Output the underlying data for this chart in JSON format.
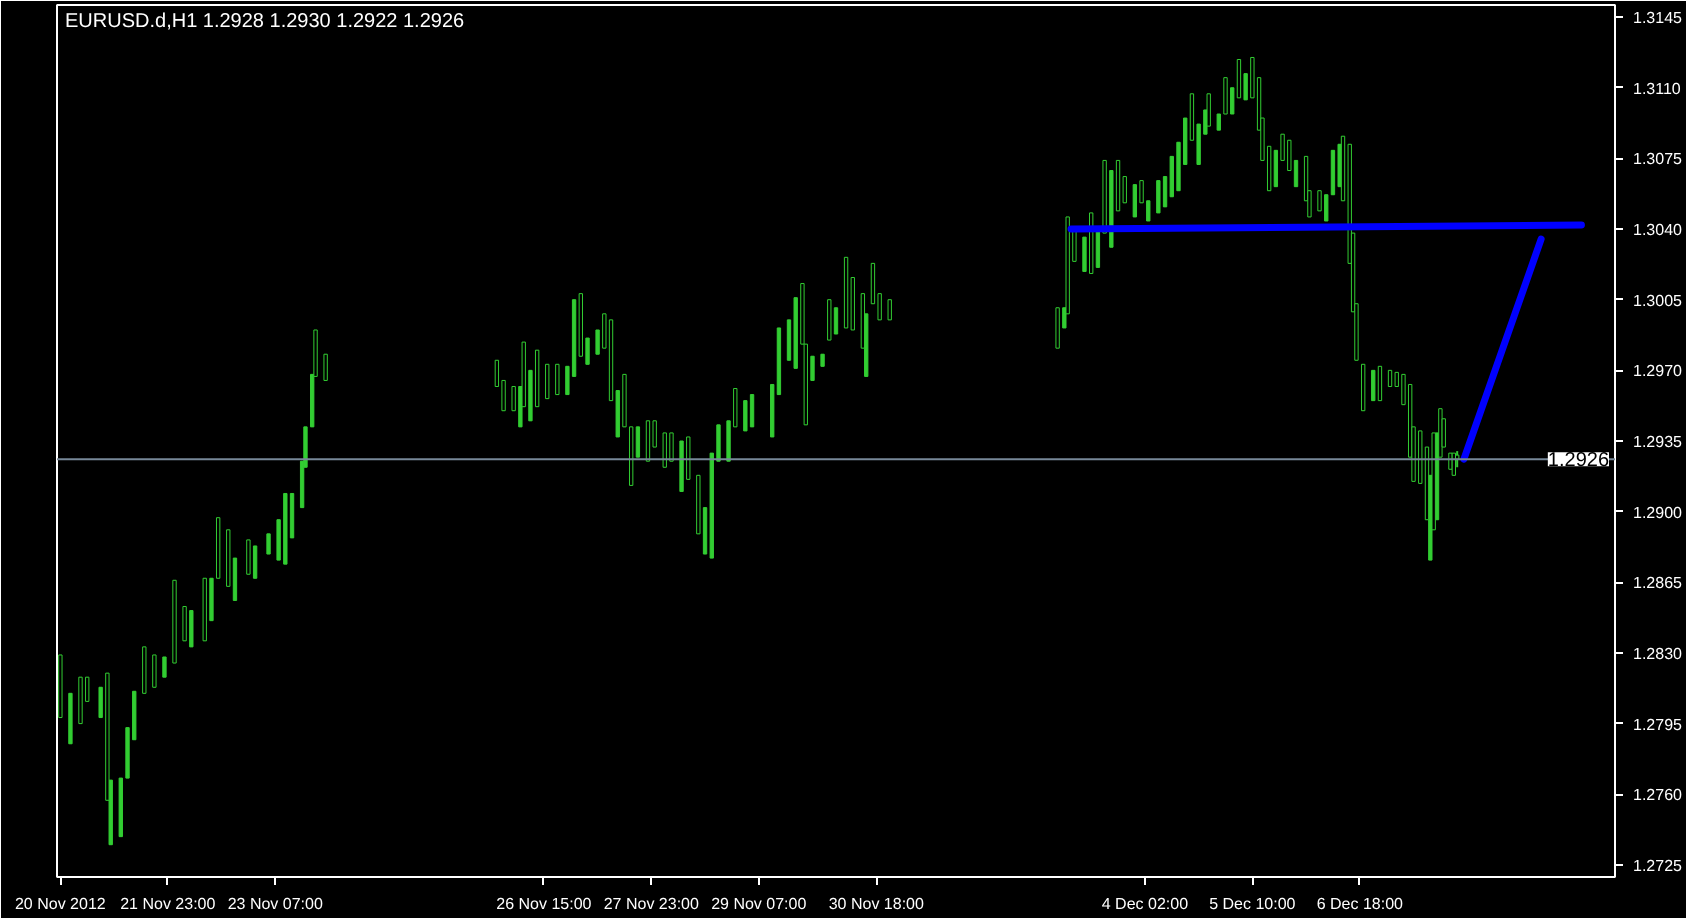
{
  "chart_data": {
    "type": "candlestick",
    "title": "EURUSD.d,H1  1.2928 1.2930 1.2922 1.2926",
    "color": "#32cd32",
    "x": [
      "2012-11-20T15:00",
      "2012-11-20T18:00",
      "2012-11-20T21:00",
      "2012-11-20T23:00",
      "2012-11-21T03:00",
      "2012-11-21T05:00",
      "2012-11-21T06:00",
      "2012-11-21T09:00",
      "2012-11-21T11:00",
      "2012-11-21T13:00",
      "2012-11-21T16:00",
      "2012-11-21T19:00",
      "2012-11-21T22:00",
      "2012-11-22T01:00",
      "2012-11-22T04:00",
      "2012-11-22T06:00",
      "2012-11-22T10:00",
      "2012-11-22T12:00",
      "2012-11-22T14:00",
      "2012-11-22T17:00",
      "2012-11-22T19:00",
      "2012-11-22T23:00",
      "2012-11-23T01:00",
      "2012-11-23T05:00",
      "2012-11-23T08:00",
      "2012-11-23T10:00",
      "2012-11-23T12:00",
      "2012-11-23T15:00",
      "2012-11-23T16:00",
      "2012-11-23T18:00",
      "2012-11-23T19:00",
      "2012-11-23T22:00",
      "2012-11-26T01:00",
      "2012-11-26T03:00",
      "2012-11-26T06:00",
      "2012-11-26T08:00",
      "2012-11-26T09:00",
      "2012-11-26T11:00",
      "2012-11-26T13:00",
      "2012-11-26T16:00",
      "2012-11-26T19:00",
      "2012-11-26T22:00",
      "2012-11-27T00:00",
      "2012-11-27T02:00",
      "2012-11-27T04:00",
      "2012-11-27T07:00",
      "2012-11-27T09:00",
      "2012-11-27T11:00",
      "2012-11-27T13:00",
      "2012-11-27T15:00",
      "2012-11-27T17:00",
      "2012-11-27T19:00",
      "2012-11-27T22:00",
      "2012-11-28T00:00",
      "2012-11-28T03:00",
      "2012-11-28T05:00",
      "2012-11-28T08:00",
      "2012-11-28T10:00",
      "2012-11-28T13:00",
      "2012-11-28T15:00",
      "2012-11-28T17:00",
      "2012-11-28T19:00",
      "2012-11-28T22:00",
      "2012-11-29T00:00",
      "2012-11-29T03:00",
      "2012-11-29T05:00",
      "2012-11-29T11:00",
      "2012-11-29T13:00",
      "2012-11-29T16:00",
      "2012-11-29T18:00",
      "2012-11-29T20:00",
      "2012-11-29T21:00",
      "2012-11-29T23:00",
      "2012-11-30T02:00",
      "2012-11-30T04:00",
      "2012-11-30T06:00",
      "2012-11-30T09:00",
      "2012-11-30T11:00",
      "2012-11-30T14:00",
      "2012-11-30T15:00",
      "2012-11-30T17:00",
      "2012-11-30T19:00",
      "2012-11-30T22:00",
      "2012-12-03T00:00",
      "2012-12-03T02:00",
      "2012-12-03T03:00",
      "2012-12-03T05:00",
      "2012-12-03T08:00",
      "2012-12-03T10:00",
      "2012-12-03T12:00",
      "2012-12-03T14:00",
      "2012-12-03T16:00",
      "2012-12-03T18:00",
      "2012-12-03T20:00",
      "2012-12-03T23:00",
      "2012-12-04T01:00",
      "2012-12-04T03:00",
      "2012-12-04T06:00",
      "2012-12-04T08:00",
      "2012-12-04T10:00",
      "2012-12-04T12:00",
      "2012-12-04T14:00",
      "2012-12-04T16:00",
      "2012-12-04T18:00",
      "2012-12-04T20:00",
      "2012-12-04T21:00",
      "2012-12-05T00:00",
      "2012-12-05T02:00",
      "2012-12-05T04:00",
      "2012-12-05T06:00",
      "2012-12-05T08:00",
      "2012-12-05T10:00",
      "2012-12-05T12:00",
      "2012-12-05T13:00",
      "2012-12-05T15:00",
      "2012-12-05T17:00",
      "2012-12-05T19:00",
      "2012-12-05T21:00",
      "2012-12-05T23:00",
      "2012-12-06T02:00",
      "2012-12-06T03:00",
      "2012-12-06T06:00",
      "2012-12-06T08:00",
      "2012-12-06T10:00",
      "2012-12-06T12:00",
      "2012-12-06T13:00",
      "2012-12-06T15:00",
      "2012-12-06T16:00",
      "2012-12-06T17:00",
      "2012-12-06T19:00",
      "2012-12-06T22:00",
      "2012-12-07T00:00",
      "2012-12-07T03:00",
      "2012-12-07T05:00",
      "2012-12-07T07:00",
      "2012-12-07T09:00",
      "2012-12-07T10:00",
      "2012-12-07T12:00",
      "2012-12-07T14:00",
      "2012-12-07T15:00",
      "2012-12-07T16:00",
      "2012-12-07T17:00",
      "2012-12-07T18:00",
      "2012-12-07T19:00",
      "2012-12-07T21:00",
      "2012-12-07T22:00",
      "2012-12-07T23:00"
    ],
    "ohlc": [
      [
        1.2829,
        1.2829,
        1.2798,
        1.2798
      ],
      [
        1.2785,
        1.281,
        1.2785,
        1.281
      ],
      [
        1.2818,
        1.2818,
        1.2795,
        1.2795
      ],
      [
        1.2818,
        1.2818,
        1.2806,
        1.2806
      ],
      [
        1.2798,
        1.2813,
        1.2798,
        1.2813
      ],
      [
        1.282,
        1.282,
        1.2757,
        1.2757
      ],
      [
        1.2735,
        1.2767,
        1.2735,
        1.2767
      ],
      [
        1.2739,
        1.2768,
        1.2739,
        1.2768
      ],
      [
        1.2768,
        1.2793,
        1.2768,
        1.2793
      ],
      [
        1.2787,
        1.2811,
        1.2787,
        1.2811
      ],
      [
        1.2833,
        1.2833,
        1.281,
        1.281
      ],
      [
        1.2829,
        1.2829,
        1.2813,
        1.2813
      ],
      [
        1.2818,
        1.2828,
        1.2818,
        1.2828
      ],
      [
        1.2866,
        1.2866,
        1.2825,
        1.2825
      ],
      [
        1.2853,
        1.2853,
        1.2836,
        1.2836
      ],
      [
        1.2833,
        1.2851,
        1.2833,
        1.2851
      ],
      [
        1.2867,
        1.2867,
        1.2836,
        1.2836
      ],
      [
        1.2846,
        1.2867,
        1.2846,
        1.2867
      ],
      [
        1.2897,
        1.2897,
        1.2867,
        1.2867
      ],
      [
        1.2891,
        1.2891,
        1.2863,
        1.2863
      ],
      [
        1.2856,
        1.2877,
        1.2856,
        1.2877
      ],
      [
        1.2886,
        1.2886,
        1.2869,
        1.2869
      ],
      [
        1.2867,
        1.2883,
        1.2867,
        1.2883
      ],
      [
        1.2879,
        1.2889,
        1.2879,
        1.2889
      ],
      [
        1.2876,
        1.2896,
        1.2876,
        1.2896
      ],
      [
        1.2874,
        1.2909,
        1.2874,
        1.2909
      ],
      [
        1.2887,
        1.2909,
        1.2887,
        1.2909
      ],
      [
        1.2902,
        1.2925,
        1.2902,
        1.2925
      ],
      [
        1.2922,
        1.2942,
        1.2922,
        1.2942
      ],
      [
        1.2942,
        1.2968,
        1.2942,
        1.2968
      ],
      [
        1.299,
        1.299,
        1.2967,
        1.2967
      ],
      [
        1.2978,
        1.2978,
        1.2965,
        1.2965
      ],
      [
        1.2975,
        1.2975,
        1.2962,
        1.2962
      ],
      [
        1.2965,
        1.2965,
        1.295,
        1.295
      ],
      [
        1.2962,
        1.2962,
        1.295,
        1.295
      ],
      [
        1.2942,
        1.2962,
        1.2942,
        1.2962
      ],
      [
        1.2984,
        1.2984,
        1.2952,
        1.2952
      ],
      [
        1.2945,
        1.297,
        1.2945,
        1.297
      ],
      [
        1.298,
        1.298,
        1.2952,
        1.2952
      ],
      [
        1.2973,
        1.2973,
        1.2956,
        1.2956
      ],
      [
        1.2973,
        1.2973,
        1.2958,
        1.2958
      ],
      [
        1.2958,
        1.2972,
        1.2958,
        1.2972
      ],
      [
        1.2967,
        1.3005,
        1.2967,
        1.3005
      ],
      [
        1.3008,
        1.3008,
        1.2977,
        1.2977
      ],
      [
        1.2973,
        1.2986,
        1.2973,
        1.2986
      ],
      [
        1.2978,
        1.299,
        1.2978,
        1.299
      ],
      [
        1.2998,
        1.2998,
        1.2981,
        1.2981
      ],
      [
        1.2995,
        1.2995,
        1.2955,
        1.2955
      ],
      [
        1.2937,
        1.296,
        1.2937,
        1.296
      ],
      [
        1.2968,
        1.2968,
        1.2942,
        1.2942
      ],
      [
        1.2942,
        1.2942,
        1.2913,
        1.2913
      ],
      [
        1.2927,
        1.2942,
        1.2927,
        1.2942
      ],
      [
        1.2945,
        1.2945,
        1.2925,
        1.2925
      ],
      [
        1.2945,
        1.2945,
        1.2932,
        1.2932
      ],
      [
        1.2939,
        1.2939,
        1.2922,
        1.2922
      ],
      [
        1.2939,
        1.2939,
        1.2925,
        1.2925
      ],
      [
        1.291,
        1.2935,
        1.291,
        1.2935
      ],
      [
        1.2937,
        1.2937,
        1.2916,
        1.2916
      ],
      [
        1.2918,
        1.2918,
        1.2889,
        1.2889
      ],
      [
        1.2879,
        1.2902,
        1.2879,
        1.2902
      ],
      [
        1.2877,
        1.2929,
        1.2877,
        1.2929
      ],
      [
        1.2925,
        1.2943,
        1.2925,
        1.2943
      ],
      [
        1.2925,
        1.2945,
        1.2925,
        1.2945
      ],
      [
        1.2961,
        1.2961,
        1.2942,
        1.2942
      ],
      [
        1.294,
        1.2955,
        1.294,
        1.2955
      ],
      [
        1.2942,
        1.2958,
        1.2942,
        1.2958
      ],
      [
        1.2937,
        1.2963,
        1.2937,
        1.2963
      ],
      [
        1.2958,
        1.2991,
        1.2958,
        1.2991
      ],
      [
        1.2975,
        1.2995,
        1.2975,
        1.2995
      ],
      [
        1.2971,
        1.3006,
        1.2971,
        1.3006
      ],
      [
        1.3013,
        1.3013,
        1.2983,
        1.2983
      ],
      [
        1.2983,
        1.2983,
        1.2943,
        1.2943
      ],
      [
        1.2965,
        1.2977,
        1.2965,
        1.2977
      ],
      [
        1.2972,
        1.2978,
        1.2972,
        1.2978
      ],
      [
        1.3005,
        1.3005,
        1.2985,
        1.2985
      ],
      [
        1.2988,
        1.3001,
        1.2988,
        1.3001
      ],
      [
        1.3026,
        1.3026,
        1.2991,
        1.2991
      ],
      [
        1.3016,
        1.3016,
        1.299,
        1.299
      ],
      [
        1.3008,
        1.3008,
        1.2981,
        1.2981
      ],
      [
        1.2967,
        1.2998,
        1.2967,
        1.2998
      ],
      [
        1.3023,
        1.3023,
        1.3003,
        1.3003
      ],
      [
        1.3008,
        1.3008,
        1.2995,
        1.2995
      ],
      [
        1.3005,
        1.3005,
        1.2995,
        1.2995
      ],
      [
        1.3001,
        1.3001,
        1.2981,
        1.2981
      ],
      [
        1.2991,
        1.3001,
        1.2991,
        1.3001
      ],
      [
        1.3046,
        1.3046,
        1.2998,
        1.2998
      ],
      [
        1.3039,
        1.3039,
        1.3024,
        1.3024
      ],
      [
        1.3019,
        1.3036,
        1.3019,
        1.3036
      ],
      [
        1.3048,
        1.3048,
        1.3018,
        1.3018
      ],
      [
        1.3021,
        1.3039,
        1.3021,
        1.3039
      ],
      [
        1.3074,
        1.3074,
        1.3038,
        1.3038
      ],
      [
        1.3031,
        1.3069,
        1.3031,
        1.3069
      ],
      [
        1.3074,
        1.3074,
        1.3049,
        1.3049
      ],
      [
        1.3066,
        1.3066,
        1.3053,
        1.3053
      ],
      [
        1.3046,
        1.3062,
        1.3046,
        1.3062
      ],
      [
        1.3064,
        1.3064,
        1.3053,
        1.3053
      ],
      [
        1.3044,
        1.3054,
        1.3044,
        1.3054
      ],
      [
        1.3048,
        1.3064,
        1.3048,
        1.3064
      ],
      [
        1.3051,
        1.3066,
        1.3051,
        1.3066
      ],
      [
        1.3056,
        1.3076,
        1.3056,
        1.3076
      ],
      [
        1.3059,
        1.3083,
        1.3059,
        1.3083
      ],
      [
        1.3072,
        1.3095,
        1.3072,
        1.3095
      ],
      [
        1.3107,
        1.3107,
        1.3084,
        1.3084
      ],
      [
        1.3072,
        1.3092,
        1.3072,
        1.3092
      ],
      [
        1.3087,
        1.3099,
        1.3087,
        1.3099
      ],
      [
        1.3107,
        1.3107,
        1.3091,
        1.3091
      ],
      [
        1.3089,
        1.3097,
        1.3089,
        1.3097
      ],
      [
        1.3115,
        1.3115,
        1.3097,
        1.3097
      ],
      [
        1.3097,
        1.311,
        1.3097,
        1.311
      ],
      [
        1.3124,
        1.3124,
        1.3105,
        1.3105
      ],
      [
        1.3104,
        1.3117,
        1.3104,
        1.3117
      ],
      [
        1.3125,
        1.3125,
        1.3105,
        1.3105
      ],
      [
        1.3115,
        1.3115,
        1.3089,
        1.3089
      ],
      [
        1.3095,
        1.3095,
        1.3074,
        1.3074
      ],
      [
        1.3081,
        1.3081,
        1.3059,
        1.3059
      ],
      [
        1.3061,
        1.3079,
        1.3061,
        1.3079
      ],
      [
        1.3087,
        1.3087,
        1.3074,
        1.3074
      ],
      [
        1.3084,
        1.3084,
        1.3069,
        1.3069
      ],
      [
        1.3061,
        1.3074,
        1.3061,
        1.3074
      ],
      [
        1.3076,
        1.3076,
        1.3054,
        1.3054
      ],
      [
        1.3059,
        1.3059,
        1.3046,
        1.3046
      ],
      [
        1.3059,
        1.3059,
        1.3049,
        1.3049
      ],
      [
        1.3044,
        1.3057,
        1.3044,
        1.3057
      ],
      [
        1.3057,
        1.3079,
        1.3057,
        1.3079
      ],
      [
        1.3061,
        1.3082,
        1.3061,
        1.3082
      ],
      [
        1.3086,
        1.3086,
        1.3054,
        1.3054
      ],
      [
        1.3082,
        1.3082,
        1.3023,
        1.3023
      ],
      [
        1.3038,
        1.3038,
        1.2999,
        1.2999
      ],
      [
        1.3003,
        1.3003,
        1.2975,
        1.2975
      ],
      [
        1.2973,
        1.2973,
        1.295,
        1.295
      ],
      [
        1.2955,
        1.297,
        1.2955,
        1.297
      ],
      [
        1.2972,
        1.2972,
        1.2955,
        1.2955
      ],
      [
        1.297,
        1.297,
        1.2962,
        1.2962
      ],
      [
        1.2969,
        1.2969,
        1.2962,
        1.2962
      ],
      [
        1.2968,
        1.2968,
        1.2953,
        1.2953
      ],
      [
        1.2963,
        1.2963,
        1.2927,
        1.2927
      ],
      [
        1.2942,
        1.2942,
        1.2915,
        1.2915
      ],
      [
        1.294,
        1.294,
        1.2914,
        1.2914
      ],
      [
        1.2932,
        1.2932,
        1.2896,
        1.2896
      ],
      [
        1.2876,
        1.2918,
        1.2876,
        1.2918
      ],
      [
        1.2939,
        1.2939,
        1.2891,
        1.2891
      ],
      [
        1.2896,
        1.2939,
        1.2896,
        1.2939
      ],
      [
        1.2951,
        1.2951,
        1.2927,
        1.2927
      ],
      [
        1.2946,
        1.2946,
        1.2932,
        1.2932
      ],
      [
        1.2929,
        1.2929,
        1.2921,
        1.2921
      ],
      [
        1.2929,
        1.2929,
        1.2918,
        1.2918
      ],
      [
        1.2928,
        1.293,
        1.2922,
        1.2926
      ]
    ],
    "series": [
      {
        "type": "line",
        "color": "#0000ff",
        "x": [
          "2012-12-03T04:00",
          "2012-12-09T12:00"
        ],
        "values": [
          1.304,
          1.3042
        ]
      },
      {
        "type": "line",
        "color": "#0000ff",
        "x": [
          "2012-12-08T01:00",
          "2012-12-09T00:00"
        ],
        "values": [
          1.2926,
          1.3035
        ]
      }
    ],
    "xlim": [
      "2012-11-20T14:00",
      "2012-12-09T22:00"
    ],
    "xticks": [
      {
        "value": "2012-11-20T15:00",
        "label": "20 Nov 2012"
      },
      {
        "value": "2012-11-21T23:00",
        "label": "21 Nov 23:00"
      },
      {
        "value": "2012-11-23T07:00",
        "label": "23 Nov 07:00"
      },
      {
        "value": "2012-11-26T15:00",
        "label": "26 Nov 15:00"
      },
      {
        "value": "2012-11-27T23:00",
        "label": "27 Nov 23:00"
      },
      {
        "value": "2012-11-29T07:00",
        "label": "29 Nov 07:00"
      },
      {
        "value": "2012-11-30T18:00",
        "label": "30 Nov 18:00"
      },
      {
        "value": "2012-12-04T02:00",
        "label": "4 Dec 02:00"
      },
      {
        "value": "2012-12-05T10:00",
        "label": "5 Dec 10:00"
      },
      {
        "value": "2012-12-06T18:00",
        "label": "6 Dec 18:00"
      }
    ],
    "ylim": [
      1.2719,
      1.3151
    ],
    "yticks": [
      {
        "value": 1.2725,
        "label": "1.2725"
      },
      {
        "value": 1.276,
        "label": "1.2760"
      },
      {
        "value": 1.2795,
        "label": "1.2795"
      },
      {
        "value": 1.283,
        "label": "1.2830"
      },
      {
        "value": 1.2865,
        "label": "1.2865"
      },
      {
        "value": 1.29,
        "label": "1.2900"
      },
      {
        "value": 1.2935,
        "label": "1.2935"
      },
      {
        "value": 1.297,
        "label": "1.2970"
      },
      {
        "value": 1.3005,
        "label": "1.3005"
      },
      {
        "value": 1.304,
        "label": "1.3040"
      },
      {
        "value": 1.3075,
        "label": "1.3075"
      },
      {
        "value": 1.311,
        "label": "1.3110"
      },
      {
        "value": 1.3145,
        "label": "1.3145"
      }
    ],
    "ref_lines": [
      {
        "axis": "y",
        "value": 1.2926,
        "label": "1.2926",
        "color": "#778899"
      }
    ],
    "grid": false
  }
}
